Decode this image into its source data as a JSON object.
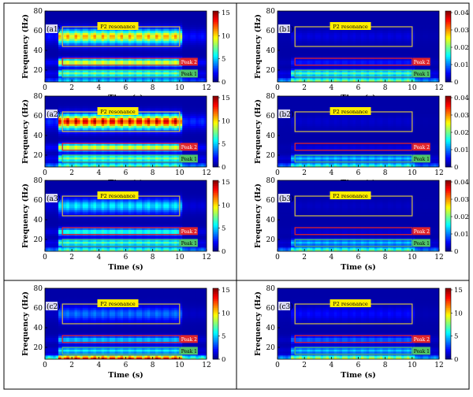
{
  "chart_data": {
    "type": "heatmap",
    "common": {
      "xlabel": "Time (s)",
      "ylabel": "Frequency (Hz)",
      "xlim": [
        0,
        12
      ],
      "ylim": [
        8,
        80
      ],
      "xticks": [
        "0",
        "2",
        "4",
        "6",
        "8",
        "10",
        "12"
      ],
      "yticks": [
        "20",
        "40",
        "60",
        "80"
      ],
      "boxes": [
        {
          "label": "P2 resonance",
          "t": [
            1.3,
            10
          ],
          "f": [
            44,
            64
          ],
          "edge": "#c8b450",
          "label_bg": "#ffee00"
        },
        {
          "label": "Peak 2",
          "t": [
            1.3,
            10
          ],
          "f": [
            25,
            32
          ],
          "edge": "#e0242b",
          "label_bg": "#e0242b"
        },
        {
          "label": "Peak 1",
          "t": [
            1.3,
            10
          ],
          "f": [
            13,
            20
          ],
          "edge": "#4fc46a",
          "label_bg": "#4fc46a"
        }
      ],
      "colormap": [
        "#00007f",
        "#0000ff",
        "#007fff",
        "#00ffff",
        "#7fff7f",
        "#ffff00",
        "#ff7f00",
        "#ff0000",
        "#7f0000"
      ]
    },
    "panels": [
      {
        "id": "(a1)",
        "clim": [
          0,
          15
        ],
        "cbar_ticks": [
          "0",
          "5",
          "10",
          "15"
        ],
        "band_p2": 0.55,
        "band_p2_peak": 0.72,
        "band_peak2": 0.62,
        "band_peak1": 0.5,
        "band_low": 0.35
      },
      {
        "id": "(b1)",
        "clim": [
          0,
          0.04
        ],
        "cbar_ticks": [
          "0",
          "0.01",
          "0.02",
          "0.03",
          "0.04"
        ],
        "band_p2": 0.04,
        "band_p2_peak": 0.06,
        "band_peak2": 0.12,
        "band_peak1": 0.45,
        "band_low": 0.55
      },
      {
        "id": "(a2)",
        "clim": [
          0,
          15
        ],
        "cbar_ticks": [
          "0",
          "5",
          "10",
          "15"
        ],
        "band_p2": 0.72,
        "band_p2_peak": 0.95,
        "band_peak2": 0.62,
        "band_peak1": 0.5,
        "band_low": 0.5
      },
      {
        "id": "(b2)",
        "clim": [
          0,
          0.04
        ],
        "cbar_ticks": [
          "0",
          "0.01",
          "0.02",
          "0.03",
          "0.04"
        ],
        "band_p2": 0.03,
        "band_p2_peak": 0.04,
        "band_peak2": 0.06,
        "band_peak1": 0.3,
        "band_low": 0.45
      },
      {
        "id": "(a3)",
        "clim": [
          0,
          15
        ],
        "cbar_ticks": [
          "0",
          "5",
          "10",
          "15"
        ],
        "band_p2": 0.28,
        "band_p2_peak": 0.36,
        "band_peak2": 0.4,
        "band_peak1": 0.45,
        "band_low": 0.5
      },
      {
        "id": "(b3)",
        "clim": [
          0,
          0.04
        ],
        "cbar_ticks": [
          "0",
          "0.01",
          "0.02",
          "0.03",
          "0.04"
        ],
        "band_p2": 0.02,
        "band_p2_peak": 0.03,
        "band_peak2": 0.05,
        "band_peak1": 0.3,
        "band_low": 0.5
      },
      {
        "id": "(c2)",
        "clim": [
          0,
          15
        ],
        "cbar_ticks": [
          "0",
          "5",
          "10",
          "15"
        ],
        "band_p2": 0.18,
        "band_p2_peak": 0.22,
        "band_peak2": 0.3,
        "band_peak1": 0.35,
        "band_low": 0.95
      },
      {
        "id": "(c3)",
        "clim": [
          0,
          15
        ],
        "cbar_ticks": [
          "0",
          "5",
          "10",
          "15"
        ],
        "band_p2": 0.08,
        "band_p2_peak": 0.1,
        "band_peak2": 0.2,
        "band_peak1": 0.3,
        "band_low": 0.6
      }
    ]
  }
}
